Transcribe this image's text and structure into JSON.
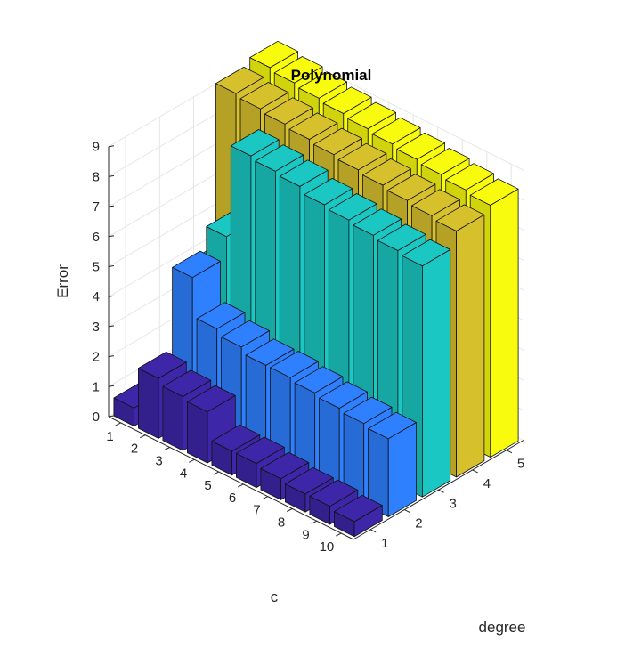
{
  "chart_data": {
    "type": "bar3",
    "title": "Polynomial",
    "xlabel": "c",
    "ylabel": "degree",
    "zlabel": "Error",
    "x_ticks": [
      "1",
      "2",
      "3",
      "4",
      "5",
      "6",
      "7",
      "8",
      "9",
      "10"
    ],
    "y_ticks": [
      "1",
      "2",
      "3",
      "4",
      "5"
    ],
    "z_ticks": [
      "0",
      "1",
      "2",
      "3",
      "4",
      "5",
      "6",
      "7",
      "8",
      "9"
    ],
    "zlim": [
      0,
      9
    ],
    "grid": true,
    "colors": [
      "#3e26a8",
      "#2f80ff",
      "#1ac7c2",
      "#d6c02c",
      "#f9fb0e"
    ],
    "series": [
      {
        "name": "1",
        "values": [
          0.6,
          2.0,
          1.8,
          1.7,
          0.8,
          0.8,
          0.7,
          0.6,
          0.6,
          0.5
        ]
      },
      {
        "name": "2",
        "values": [
          0.6,
          4.7,
          3.4,
          3.2,
          3.0,
          3.0,
          2.9,
          2.8,
          2.7,
          2.6
        ]
      },
      {
        "name": "3",
        "values": [
          3.7,
          5.4,
          8.5,
          8.4,
          8.3,
          8.1,
          8.0,
          7.9,
          7.8,
          7.7
        ]
      },
      {
        "name": "4",
        "values": [
          9.1,
          9.0,
          8.9,
          8.8,
          8.7,
          8.6,
          8.5,
          8.4,
          8.3,
          8.2
        ]
      },
      {
        "name": "5",
        "values": [
          9.3,
          9.2,
          9.1,
          9.0,
          8.9,
          8.8,
          8.7,
          8.6,
          8.5,
          8.4
        ]
      }
    ]
  }
}
